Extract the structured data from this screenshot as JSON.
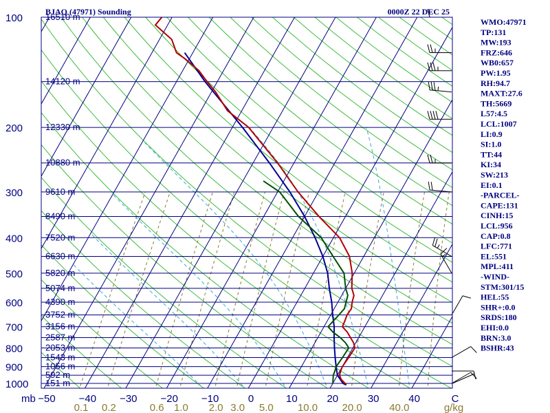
{
  "header": {
    "station": "BJAQ (47971) Sounding",
    "time": "0000Z 22 DEC 25"
  },
  "colors": {
    "axis": "#000080",
    "dry_adiabat": "#1a1ac8",
    "moist_adiabat": "#00b400",
    "mixing_ratio": "#8a7a30",
    "temperature": "#b00000",
    "dewpoint": "#005000",
    "parcel": "#000090",
    "wind": "#000000"
  },
  "indices": [
    "WMO:47971",
    "TP:131",
    "MW:193",
    "FRZ:646",
    "WB0:657",
    "PW:1.95",
    "RH:94.7",
    "MAXT:27.6",
    "TH:5669",
    "L57:4.5",
    "LCL:1007",
    "LI:0.9",
    "SI:1.0",
    "TT:44",
    "KI:34",
    "SW:213",
    "EI:0.1",
    "-PARCEL-",
    "CAPE:131",
    "CINH:15",
    "LCL:956",
    "CAP:0.8",
    "LFC:771",
    "EL:551",
    "MPL:411",
    "-WIND-",
    "STM:301/15",
    "HEL:55",
    "SHR+:0.0",
    "SRDS:180",
    "EHI:0.0",
    "BRN:3.0",
    "BSHR:43"
  ],
  "chart_data": {
    "type": "skew-t log-p sounding",
    "title": "BJAQ (47971) Sounding",
    "valid_time": "0000Z 22 DEC 25",
    "pressure_unit": "mb",
    "mixing_ratio_unit": "g/kg",
    "pressure_range": [
      1000,
      100
    ],
    "temperature_range_at_1000": [
      -50,
      50
    ],
    "temperature_ticks": [
      -50,
      -40,
      -30,
      -20,
      -10,
      0,
      10,
      20,
      30,
      40,
      "C"
    ],
    "pressure_ticks": [
      100,
      200,
      300,
      400,
      500,
      600,
      700,
      800,
      900,
      1000
    ],
    "mixing_ratio_ticks": [
      "0.1",
      "0.2",
      "0.6",
      "1.0",
      "2.0",
      "3.0",
      "5.0",
      "10.0",
      "20.0",
      "40.0"
    ],
    "height_labels": [
      {
        "p": 100,
        "h": "16510 m"
      },
      {
        "p": 150,
        "h": "14120 m"
      },
      {
        "p": 200,
        "h": "12330 m"
      },
      {
        "p": 250,
        "h": "10880 m"
      },
      {
        "p": 300,
        "h": "9610 m"
      },
      {
        "p": 350,
        "h": "8490 m"
      },
      {
        "p": 400,
        "h": "7520 m"
      },
      {
        "p": 450,
        "h": "6630 m"
      },
      {
        "p": 500,
        "h": "5820 m"
      },
      {
        "p": 550,
        "h": "5074 m"
      },
      {
        "p": 600,
        "h": "4390 m"
      },
      {
        "p": 650,
        "h": "3752 m"
      },
      {
        "p": 700,
        "h": "3156 m"
      },
      {
        "p": 750,
        "h": "2587 m"
      },
      {
        "p": 800,
        "h": "2053 m"
      },
      {
        "p": 850,
        "h": "1543 m"
      },
      {
        "p": 900,
        "h": "1056 m"
      },
      {
        "p": 950,
        "h": "592 m"
      },
      {
        "p": 1000,
        "h": "151 m"
      }
    ],
    "temperature": [
      {
        "p": 1005,
        "t": 23.5
      },
      {
        "p": 1000,
        "t": 23.0
      },
      {
        "p": 975,
        "t": 21.5
      },
      {
        "p": 950,
        "t": 20.5
      },
      {
        "p": 925,
        "t": 20.2
      },
      {
        "p": 900,
        "t": 20.0
      },
      {
        "p": 850,
        "t": 20.3
      },
      {
        "p": 800,
        "t": 20.5
      },
      {
        "p": 775,
        "t": 19.5
      },
      {
        "p": 750,
        "t": 18.0
      },
      {
        "p": 725,
        "t": 16.5
      },
      {
        "p": 700,
        "t": 14.5
      },
      {
        "p": 675,
        "t": 14.3
      },
      {
        "p": 650,
        "t": 14.0
      },
      {
        "p": 625,
        "t": 14.2
      },
      {
        "p": 600,
        "t": 13.5
      },
      {
        "p": 575,
        "t": 13.0
      },
      {
        "p": 550,
        "t": 11.5
      },
      {
        "p": 500,
        "t": 9.5
      },
      {
        "p": 450,
        "t": 6.5
      },
      {
        "p": 400,
        "t": 1.5
      },
      {
        "p": 350,
        "t": -6.5
      },
      {
        "p": 300,
        "t": -15.0
      },
      {
        "p": 250,
        "t": -24.0
      },
      {
        "p": 200,
        "t": -36.0
      },
      {
        "p": 180,
        "t": -43.5
      },
      {
        "p": 160,
        "t": -49.0
      },
      {
        "p": 150,
        "t": -52.5
      },
      {
        "p": 140,
        "t": -56.0
      },
      {
        "p": 130,
        "t": -61.0
      },
      {
        "p": 125,
        "t": -64.0
      },
      {
        "p": 115,
        "t": -67.0
      },
      {
        "p": 105,
        "t": -73.0
      },
      {
        "p": 100,
        "t": -72.5
      }
    ],
    "dewpoint": [
      {
        "p": 1000,
        "t": 20.0
      },
      {
        "p": 975,
        "t": 19.5
      },
      {
        "p": 950,
        "t": 19.0
      },
      {
        "p": 925,
        "t": 18.8
      },
      {
        "p": 900,
        "t": 18.5
      },
      {
        "p": 850,
        "t": 18.8
      },
      {
        "p": 800,
        "t": 19.0
      },
      {
        "p": 775,
        "t": 17.5
      },
      {
        "p": 750,
        "t": 15.5
      },
      {
        "p": 725,
        "t": 13.0
      },
      {
        "p": 700,
        "t": 11.0
      },
      {
        "p": 675,
        "t": 11.5
      },
      {
        "p": 650,
        "t": 12.0
      },
      {
        "p": 625,
        "t": 12.5
      },
      {
        "p": 600,
        "t": 12.0
      },
      {
        "p": 575,
        "t": 11.5
      },
      {
        "p": 550,
        "t": 10.0
      },
      {
        "p": 500,
        "t": 7.5
      },
      {
        "p": 450,
        "t": 2.5
      },
      {
        "p": 400,
        "t": -3.0
      },
      {
        "p": 350,
        "t": -11.5
      },
      {
        "p": 300,
        "t": -19.5
      },
      {
        "p": 280,
        "t": -25.0
      }
    ],
    "parcel": [
      {
        "p": 1010,
        "t": 23.5
      },
      {
        "p": 1000,
        "t": 22.5
      },
      {
        "p": 950,
        "t": 20.0
      },
      {
        "p": 900,
        "t": 18.5
      },
      {
        "p": 850,
        "t": 17.0
      },
      {
        "p": 800,
        "t": 15.5
      },
      {
        "p": 750,
        "t": 14.0
      },
      {
        "p": 700,
        "t": 12.5
      },
      {
        "p": 650,
        "t": 10.5
      },
      {
        "p": 600,
        "t": 8.5
      },
      {
        "p": 550,
        "t": 6.0
      },
      {
        "p": 500,
        "t": 3.5
      },
      {
        "p": 450,
        "t": 0.0
      },
      {
        "p": 400,
        "t": -4.5
      },
      {
        "p": 350,
        "t": -10.0
      },
      {
        "p": 300,
        "t": -17.0
      },
      {
        "p": 250,
        "t": -26.0
      },
      {
        "p": 200,
        "t": -37.5
      },
      {
        "p": 150,
        "t": -53.0
      },
      {
        "p": 125,
        "t": -62.0
      }
    ],
    "winds": [
      {
        "p": 100,
        "dir": 270,
        "spd": 10
      },
      {
        "p": 125,
        "dir": 270,
        "spd": 25
      },
      {
        "p": 140,
        "dir": 270,
        "spd": 35
      },
      {
        "p": 160,
        "dir": 275,
        "spd": 35
      },
      {
        "p": 190,
        "dir": 270,
        "spd": 40
      },
      {
        "p": 250,
        "dir": 270,
        "spd": 25
      },
      {
        "p": 300,
        "dir": 275,
        "spd": 20
      },
      {
        "p": 450,
        "dir": 300,
        "spd": 25
      },
      {
        "p": 500,
        "dir": 330,
        "spd": 15
      },
      {
        "p": 650,
        "dir": 30,
        "spd": 10
      },
      {
        "p": 850,
        "dir": 60,
        "spd": 10
      },
      {
        "p": 925,
        "dir": 90,
        "spd": 10
      },
      {
        "p": 1000,
        "dir": 60,
        "spd": 10
      }
    ]
  }
}
